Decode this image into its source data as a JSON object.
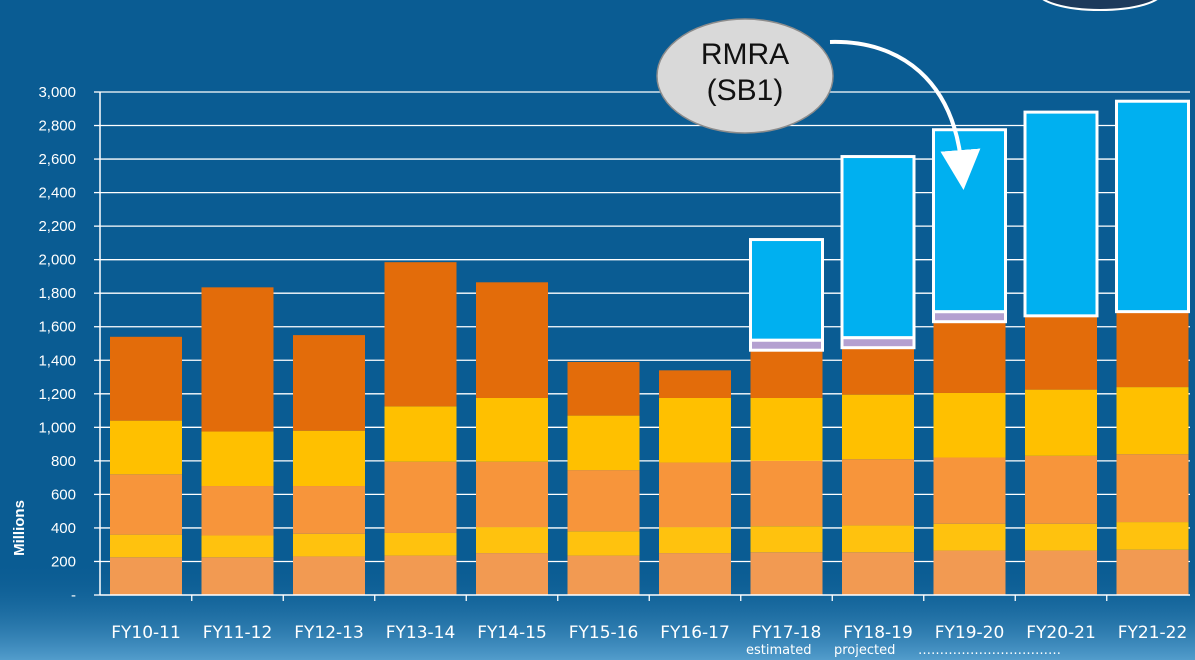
{
  "chart_data": {
    "type": "bar",
    "stacked": true,
    "categories": [
      "FY10-11",
      "FY11-12",
      "FY12-13",
      "FY13-14",
      "FY14-15",
      "FY15-16",
      "FY16-17",
      "FY17-18",
      "FY18-19",
      "FY19-20",
      "FY20-21",
      "FY21-22"
    ],
    "ylabel": "Millions",
    "ylim": [
      0,
      3000
    ],
    "yticks": [
      {
        "value": 0,
        "label": "-"
      },
      {
        "value": 200,
        "label": "200"
      },
      {
        "value": 400,
        "label": "400"
      },
      {
        "value": 600,
        "label": "600"
      },
      {
        "value": 800,
        "label": "800"
      },
      {
        "value": 1000,
        "label": "1,000"
      },
      {
        "value": 1200,
        "label": "1,200"
      },
      {
        "value": 1400,
        "label": "1,400"
      },
      {
        "value": 1600,
        "label": "1,600"
      },
      {
        "value": 1800,
        "label": "1,800"
      },
      {
        "value": 2000,
        "label": "2,000"
      },
      {
        "value": 2200,
        "label": "2,200"
      },
      {
        "value": 2400,
        "label": "2,400"
      },
      {
        "value": 2600,
        "label": "2,600"
      },
      {
        "value": 2800,
        "label": "2,800"
      },
      {
        "value": 3000,
        "label": "3,000"
      }
    ],
    "grid": true,
    "series": [
      {
        "color": "#f29a52",
        "values": [
          225,
          225,
          230,
          235,
          250,
          235,
          250,
          255,
          255,
          265,
          265,
          270
        ]
      },
      {
        "color": "#ffc20e",
        "values": [
          135,
          130,
          135,
          135,
          155,
          145,
          155,
          155,
          160,
          160,
          160,
          165
        ]
      },
      {
        "color": "#f7953b",
        "values": [
          360,
          295,
          285,
          425,
          390,
          365,
          385,
          390,
          395,
          395,
          405,
          405
        ]
      },
      {
        "color": "#ffc000",
        "values": [
          320,
          325,
          330,
          330,
          380,
          325,
          385,
          375,
          385,
          385,
          395,
          400
        ]
      },
      {
        "color": "#e36c0a",
        "values": [
          500,
          860,
          570,
          860,
          690,
          320,
          165,
          285,
          280,
          425,
          440,
          450
        ]
      },
      {
        "color": "#b4a0d0",
        "values": [
          0,
          0,
          0,
          0,
          0,
          0,
          0,
          60,
          60,
          60,
          0,
          0
        ]
      },
      {
        "color": "#00b0f0",
        "values": [
          0,
          0,
          0,
          0,
          0,
          0,
          0,
          600,
          1080,
          1085,
          1215,
          1255
        ]
      }
    ],
    "annotations": {
      "callout": [
        "RMRA",
        "(SB1)"
      ],
      "footnote_estimated": "estimated",
      "footnote_projected": "projected",
      "footnote_dots": "……………………………"
    },
    "colors": {
      "background": "#0a5c93",
      "grid": "#ffffff",
      "callout_fill": "#d9d9d9"
    }
  }
}
